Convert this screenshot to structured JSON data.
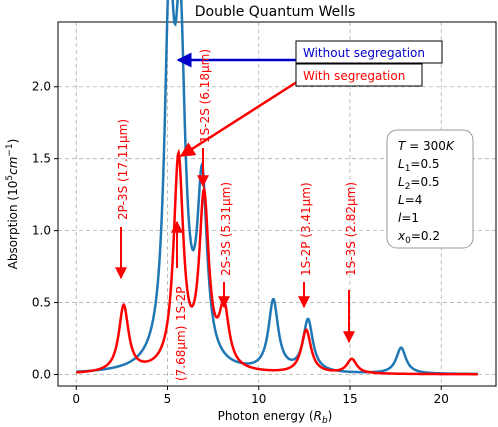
{
  "colors": {
    "without_segregation": "#1f77b4",
    "with_segregation": "#ff0000",
    "grid": "#b0b0b0",
    "arrow_blue": "#0000cc",
    "legend_blue_text": "#0000cc"
  },
  "chart_data": {
    "type": "line",
    "title": "Double Quantum Wells",
    "xlabel": "Photon energy (R_b)",
    "ylabel": "Absorption (10^5 cm^-1)",
    "xlim": [
      -1,
      23
    ],
    "ylim": [
      -0.08,
      2.45
    ],
    "xticks": [
      0,
      5,
      10,
      15,
      20
    ],
    "yticks": [
      0.0,
      0.5,
      1.0,
      1.5,
      2.0
    ],
    "xtick_labels": [
      "0",
      "5",
      "10",
      "15",
      "20"
    ],
    "ytick_labels": [
      "0.0",
      "0.5",
      "1.0",
      "1.5",
      "2.0"
    ],
    "grid": true,
    "series": [
      {
        "name": "Without segregation",
        "peaks": [
          {
            "x": 5.1,
            "y": 2.35
          },
          {
            "x": 5.7,
            "y": 2.12
          },
          {
            "x": 6.9,
            "y": 1.24
          },
          {
            "x": 10.8,
            "y": 0.49
          },
          {
            "x": 12.7,
            "y": 0.36
          },
          {
            "x": 17.8,
            "y": 0.18
          }
        ],
        "x_range": [
          0,
          22
        ]
      },
      {
        "name": "With segregation",
        "peaks": [
          {
            "x": 2.6,
            "y": 0.46
          },
          {
            "x": 5.6,
            "y": 1.47
          },
          {
            "x": 7.0,
            "y": 1.18
          },
          {
            "x": 8.1,
            "y": 0.4
          },
          {
            "x": 12.6,
            "y": 0.3
          },
          {
            "x": 15.1,
            "y": 0.1
          }
        ],
        "x_range": [
          0,
          22
        ]
      }
    ],
    "annotations": [
      {
        "id": "2p3s",
        "text": "2P-3S (17.11μm)",
        "x": 2.6
      },
      {
        "id": "1s2s",
        "text": "1S-2S (6.18μm)",
        "x": 7.0
      },
      {
        "id": "1s2p_left",
        "text": "1S-2P",
        "x": 5.6
      },
      {
        "id": "1s2p_nm",
        "text": "(7.68μm)",
        "x": 5.6
      },
      {
        "id": "2s3s",
        "text": "2S-3S (5.31μm)",
        "x": 8.1
      },
      {
        "id": "1s2p",
        "text": "1S-2P (3.41μm)",
        "x": 12.6
      },
      {
        "id": "1s3s",
        "text": "1S-3S (2.82μm)",
        "x": 15.1
      }
    ],
    "legend_labels": {
      "without": "Without segregation",
      "with": "With segregation"
    },
    "params_box": [
      "T = 300K",
      "L1 = 0.5",
      "L2 = 0.5",
      "L = 4",
      "l = 1",
      "x0 = 0.2"
    ]
  }
}
